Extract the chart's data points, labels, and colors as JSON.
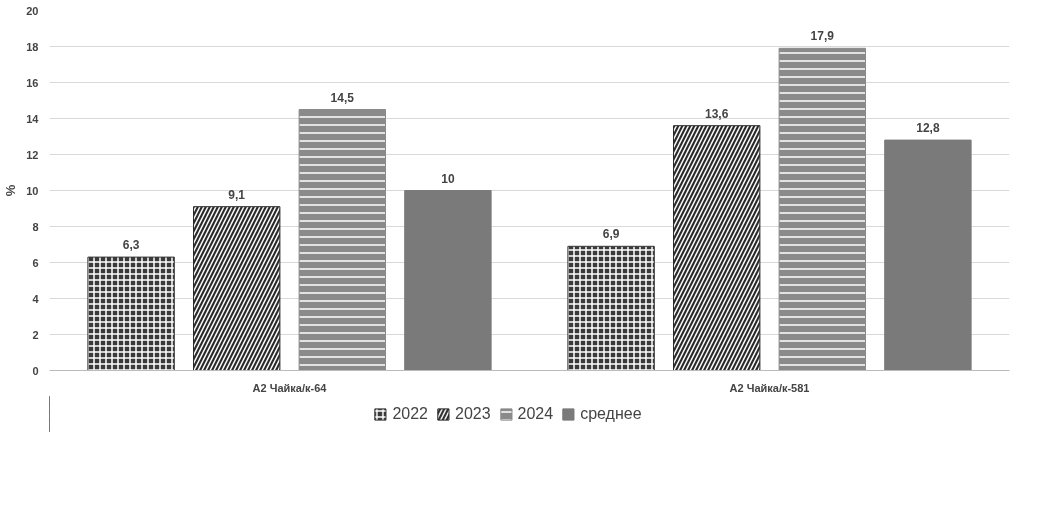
{
  "chart_data": {
    "type": "bar",
    "ylabel": "%",
    "categories": [
      "А2 Чайка/к-64",
      "А2 Чайка/к-581"
    ],
    "series": [
      {
        "name": "2022",
        "color": "#3a3a3a",
        "values": [
          6.3,
          6.9
        ],
        "value_labels": [
          "6,3",
          "6,9"
        ]
      },
      {
        "name": "2023",
        "color": "#2a2a2a",
        "values": [
          9.1,
          13.6
        ],
        "value_labels": [
          "9,1",
          "13,6"
        ]
      },
      {
        "name": "2024",
        "color": "#8a8a8a",
        "values": [
          14.5,
          17.9
        ],
        "value_labels": [
          "14,5",
          "17,9"
        ]
      },
      {
        "name": "среднее",
        "color": "#7a7a7a",
        "values": [
          10,
          12.8
        ],
        "value_labels": [
          "10",
          "12,8"
        ]
      }
    ],
    "ylim": [
      0,
      20
    ],
    "yticks": [
      0,
      2,
      4,
      6,
      8,
      10,
      12,
      14,
      16,
      18,
      20
    ],
    "grid": "y",
    "legend": "bottom"
  }
}
